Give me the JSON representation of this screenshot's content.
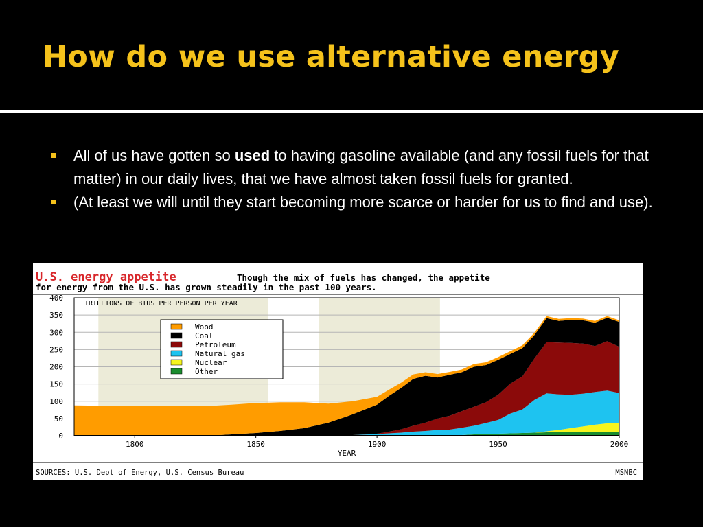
{
  "slide": {
    "title": "How do we use alternative energy",
    "bullets": [
      {
        "before": "All of us have gotten so ",
        "bold": "used",
        "after": " to having gasoline available (and any fossil fuels for that matter) in our daily lives, that we have almost taken fossil fuels for granted."
      },
      {
        "text": "(At least we will until they start becoming more scarce or harder for us to find and use)."
      }
    ]
  },
  "chart_data": {
    "type": "area",
    "title": "U.S. energy appetite",
    "subtitle_line1": "Though the mix of fuels has changed, the appetite",
    "subtitle_line2": "for energy from the U.S. has grown steadily in the past 100 years.",
    "ylabel": "TRILLIONS OF BTUS PER PERSON PER YEAR",
    "xlabel": "YEAR",
    "xlim": [
      1775,
      2000
    ],
    "ylim": [
      0,
      400
    ],
    "xticks": [
      1800,
      1850,
      1900,
      1950,
      2000
    ],
    "xtick_labels": [
      "1800",
      "1850",
      "1900",
      "1950",
      "2000"
    ],
    "yticks": [
      0,
      50,
      100,
      150,
      200,
      250,
      300,
      350,
      400
    ],
    "ytick_labels": [
      "0",
      "50",
      "100",
      "150",
      "200",
      "250",
      "300",
      "350",
      "400"
    ],
    "shaded_x_ranges": [
      [
        1785,
        1855
      ],
      [
        1876,
        1926
      ]
    ],
    "grid": true,
    "stacked": true,
    "legend_position": "top-left",
    "x": [
      1775,
      1800,
      1830,
      1840,
      1850,
      1860,
      1870,
      1880,
      1890,
      1900,
      1905,
      1910,
      1915,
      1920,
      1925,
      1930,
      1935,
      1940,
      1945,
      1950,
      1955,
      1960,
      1965,
      1970,
      1975,
      1980,
      1985,
      1990,
      1995,
      2000
    ],
    "series": [
      {
        "name": "Other",
        "color": "#1a8c2e",
        "values": [
          0,
          0,
          0,
          0,
          0,
          0,
          0,
          0,
          0,
          0,
          0,
          0,
          0,
          0,
          0,
          0,
          2,
          4,
          5,
          6,
          7,
          8,
          9,
          10,
          10,
          10,
          10,
          10,
          10,
          10
        ]
      },
      {
        "name": "Nuclear",
        "color": "#f5f51e",
        "values": [
          0,
          0,
          0,
          0,
          0,
          0,
          0,
          0,
          0,
          0,
          0,
          0,
          0,
          0,
          0,
          0,
          0,
          0,
          0,
          0,
          0,
          0,
          0,
          3,
          7,
          12,
          17,
          22,
          26,
          28
        ]
      },
      {
        "name": "Natural gas",
        "color": "#1ec3f0",
        "values": [
          0,
          0,
          0,
          0,
          0,
          0,
          0,
          0,
          2,
          5,
          7,
          9,
          12,
          14,
          17,
          18,
          21,
          25,
          32,
          40,
          57,
          68,
          95,
          110,
          103,
          97,
          95,
          95,
          95,
          86
        ]
      },
      {
        "name": "Petroleum",
        "color": "#8b0a0a",
        "values": [
          0,
          0,
          0,
          0,
          0,
          0,
          0,
          0,
          0,
          1,
          5,
          10,
          17,
          24,
          33,
          40,
          48,
          55,
          60,
          73,
          87,
          96,
          120,
          148,
          150,
          150,
          145,
          133,
          143,
          134
        ]
      },
      {
        "name": "Coal",
        "color": "#000000",
        "values": [
          0,
          0,
          0,
          4,
          8,
          14,
          22,
          38,
          60,
          84,
          104,
          120,
          136,
          136,
          119,
          119,
          113,
          116,
          108,
          101,
          86,
          82,
          68,
          70,
          63,
          67,
          68,
          68,
          68,
          72
        ]
      },
      {
        "name": "Wood",
        "color": "#ff9c00",
        "values": [
          88,
          86,
          86,
          86,
          87,
          83,
          75,
          55,
          38,
          23,
          18,
          15,
          13,
          10,
          10,
          8,
          8,
          8,
          8,
          8,
          8,
          8,
          7,
          6,
          6,
          5,
          5,
          5,
          5,
          5
        ]
      }
    ],
    "source_note": "SOURCES: U.S. Dept of Energy, U.S. Census Bureau",
    "credit": "MSNBC"
  }
}
